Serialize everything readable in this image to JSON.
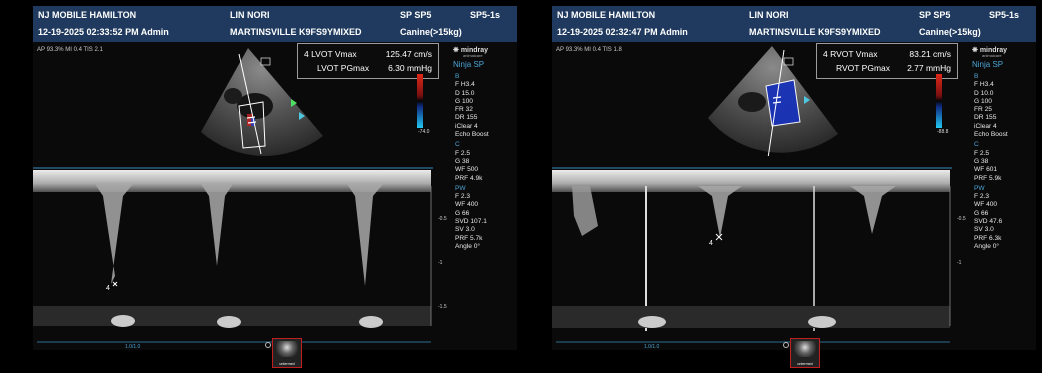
{
  "left_screen": {
    "header": {
      "site": "NJ MOBILE HAMILTON",
      "datetime_user": "12-19-2025  02:33:52 PM   Admin",
      "patient_name": "LIN NORI",
      "patient_code": "MARTINSVILLE K9FS9YMIXED",
      "probe": "SP SP5",
      "preset": "Canine(>15kg)",
      "mode": "SP5-1s"
    },
    "ap_mi_tis": "AP 93.3%  MI 0.4  TIS 2.1",
    "measurement": {
      "line1_label": "4 LVOT Vmax",
      "line1_value": "125.47 cm/s",
      "line2_label": "LVOT PGmax",
      "line2_value": "6.30 mmHg"
    },
    "logo_text": "mindray",
    "logo_small": "animalcare",
    "logo_sub": "Ninja SP",
    "colorbar_label": "-74.0",
    "param_groups": [
      {
        "head": "B",
        "values": [
          "F H3.4",
          "D 15.0",
          "G 100",
          "FR 32",
          "DR 155",
          "iClear 4",
          "Echo Boost"
        ]
      },
      {
        "head": "C",
        "values": [
          "F 2.5",
          "G 38",
          "WF 500",
          "PRF 4.9k"
        ]
      },
      {
        "head": "PW",
        "values": [
          "F 2.3",
          "WF 400",
          "G 66",
          "SVD 107.1",
          "SV 3.0",
          "PRF 5.7k",
          "Angle 0°"
        ]
      }
    ],
    "caliper_label": "4",
    "scale_labels": [
      "-0.5",
      "-1",
      "-1.5"
    ],
    "speed_label": "1.0/1.0",
    "thumb_caption": "untermed"
  },
  "right_screen": {
    "header": {
      "site": "NJ MOBILE HAMILTON",
      "datetime_user": "12-19-2025  02:32:47 PM   Admin",
      "patient_name": "LIN NORI",
      "patient_code": "MARTINSVILLE K9FS9YMIXED",
      "probe": "SP SP5",
      "preset": "Canine(>15kg)",
      "mode": "SP5-1s"
    },
    "ap_mi_tis": "AP 93.3%  MI 0.4  TIS 1.8",
    "measurement": {
      "line1_label": "4 RVOT Vmax",
      "line1_value": "83.21 cm/s",
      "line2_label": "RVOT PGmax",
      "line2_value": "2.77 mmHg"
    },
    "logo_text": "mindray",
    "logo_small": "animalcare",
    "logo_sub": "Ninja SP",
    "colorbar_label": "-88.8",
    "param_groups": [
      {
        "head": "B",
        "values": [
          "F H3.4",
          "D 10.0",
          "G 100",
          "FR 25",
          "DR 155",
          "iClear 4",
          "Echo Boost"
        ]
      },
      {
        "head": "C",
        "values": [
          "F 2.5",
          "G 38",
          "WF 601",
          "PRF 5.9k"
        ]
      },
      {
        "head": "PW",
        "values": [
          "F 2.3",
          "WF 400",
          "G 66",
          "SVD 47.6",
          "SV 3.0",
          "PRF 6.3k",
          "Angle 0°"
        ]
      }
    ],
    "caliper_label": "4",
    "scale_labels": [
      "-0.5",
      "-1"
    ],
    "speed_label": "1.0/1.0",
    "thumb_caption": "untermed"
  },
  "colors": {
    "header_bg": "#1f3a5e",
    "param_label": "#4da4d6",
    "doppler_baseline": "#3a8fc0",
    "thumbnail_border": "#c11f1f"
  }
}
